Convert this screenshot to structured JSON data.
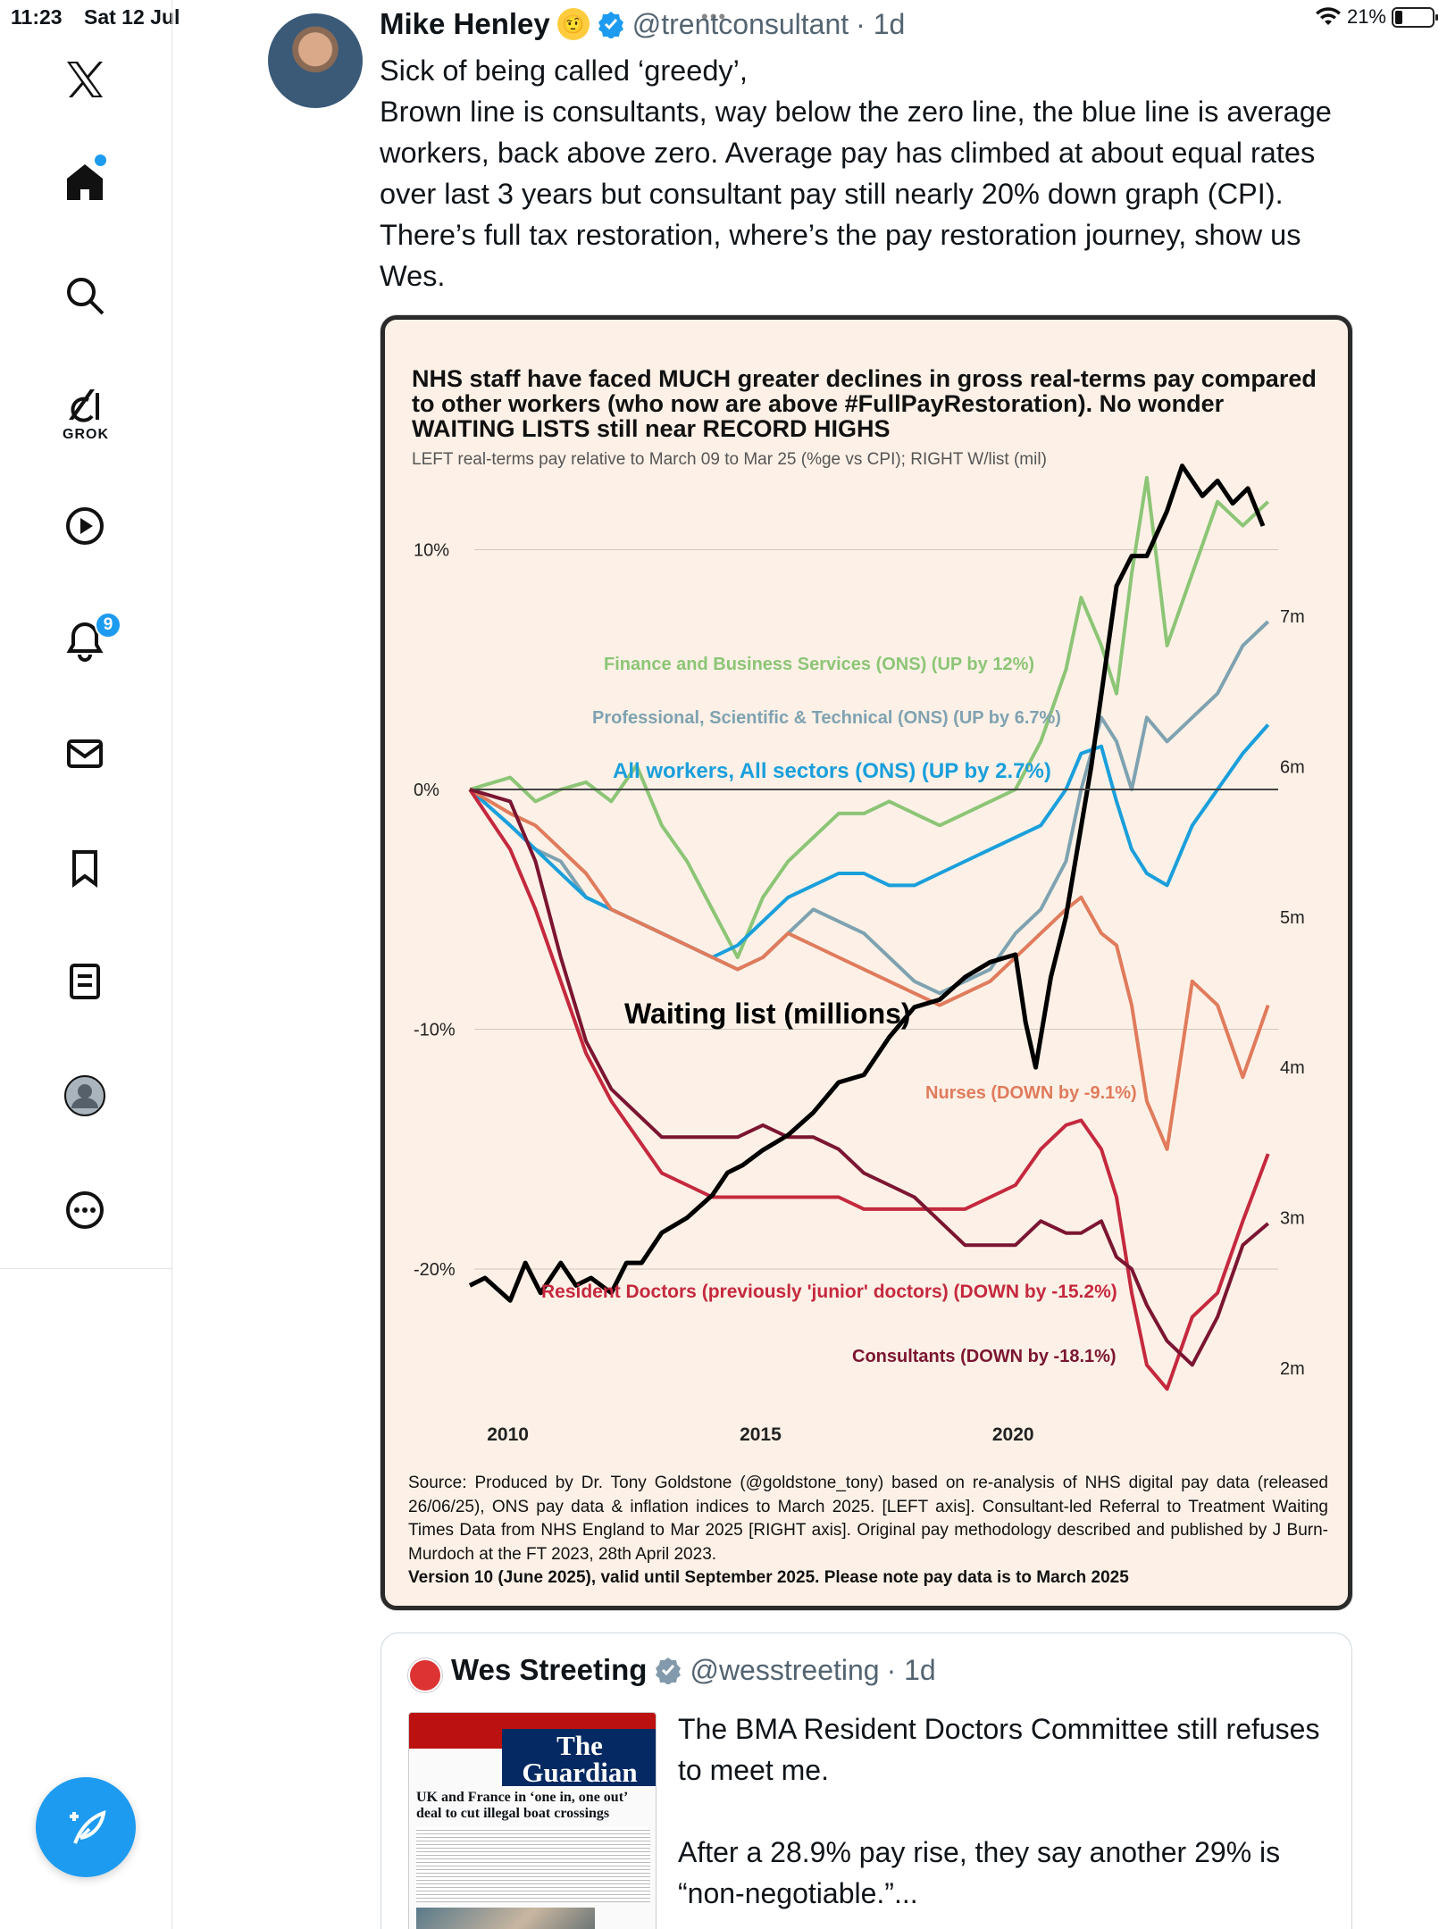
{
  "status": {
    "time": "11:23",
    "date": "Sat 12 Jul",
    "battery": "21%"
  },
  "sidebar": {
    "items": [
      {
        "name": "x-logo"
      },
      {
        "name": "home"
      },
      {
        "name": "search"
      },
      {
        "name": "grok",
        "label": "GROK"
      },
      {
        "name": "video"
      },
      {
        "name": "notifications",
        "badge": "9"
      },
      {
        "name": "messages"
      },
      {
        "name": "bookmarks"
      },
      {
        "name": "lists"
      },
      {
        "name": "profile"
      },
      {
        "name": "more"
      }
    ],
    "accent": "#1d9bf0"
  },
  "tweet": {
    "name": "Mike Henley",
    "handle": "@trentconsultant",
    "time": "· 1d",
    "text": "Sick of being called ‘greedy’,\nBrown line is consultants, way below the zero line, the blue line is average workers, back above zero. Average pay has climbed at about equal rates over last 3 years but consultant pay still nearly 20% down graph (CPI). There’s full tax restoration, where’s the pay restoration journey, show us Wes."
  },
  "chart": {
    "title": "NHS staff have faced MUCH greater declines in gross real-terms pay compared to other workers (who now are above #FullPayRestoration). No wonder WAITING LISTS still near RECORD HIGHS",
    "subtitle": "LEFT real-terms pay relative to March 09 to Mar 25 (%ge vs CPI); RIGHT W/list (mil)",
    "source": "Source: Produced by Dr. Tony Goldstone (@goldstone_tony) based on re-analysis of NHS digital pay data (released 26/06/25), ONS pay data & inflation indices to March 2025. [LEFT axis]. Consultant-led Referral to Treatment Waiting Times Data from NHS England to Mar 2025 [RIGHT axis]. Original pay methodology described and published by J Burn-Murdoch at the FT 2023, 28th April 2023.",
    "version": "Version 10 (June 2025), valid until September 2025. Please note pay data is to March 2025"
  },
  "chart_data": {
    "type": "line",
    "x_ticks": [
      "2010",
      "2015",
      "2020"
    ],
    "x_range": [
      2009.2,
      2025.2
    ],
    "left_ticks": [
      "10%",
      "0%",
      "-10%",
      "-20%"
    ],
    "left_ylim": [
      -26,
      12
    ],
    "right_ticks": [
      "7m",
      "6m",
      "5m",
      "4m",
      "3m",
      "2m"
    ],
    "right_ylim": [
      1.75,
      8.2
    ],
    "series": [
      {
        "name": "Finance and Business Services (ONS) (UP by 12%)",
        "color": "#8cc576",
        "axis": "left",
        "x": [
          2009.2,
          2010,
          2010.5,
          2011,
          2011.5,
          2012,
          2012.5,
          2013,
          2013.5,
          2014,
          2014.5,
          2015,
          2015.5,
          2016,
          2016.5,
          2017,
          2017.5,
          2018,
          2018.5,
          2019,
          2019.5,
          2020,
          2020.5,
          2021,
          2021.3,
          2021.7,
          2022,
          2022.3,
          2022.6,
          2023,
          2023.5,
          2024,
          2024.5,
          2025
        ],
        "y": [
          0,
          0.5,
          -0.5,
          0,
          0.3,
          -0.5,
          1,
          -1.5,
          -3,
          -5,
          -7,
          -4.5,
          -3,
          -2,
          -1,
          -1,
          -0.5,
          -1,
          -1.5,
          -1,
          -0.5,
          0,
          2,
          5,
          8,
          6,
          4,
          9,
          13,
          6,
          9,
          12,
          11,
          12
        ]
      },
      {
        "name": "Professional, Scientific & Technical (ONS) (UP by 6.7%)",
        "color": "#7fa2b1",
        "axis": "left",
        "x": [
          2009.2,
          2010,
          2010.5,
          2011,
          2011.5,
          2012,
          2012.5,
          2013,
          2013.5,
          2014,
          2014.5,
          2015,
          2015.5,
          2016,
          2016.5,
          2017,
          2017.5,
          2018,
          2018.5,
          2019,
          2019.5,
          2020,
          2020.5,
          2021,
          2021.3,
          2021.7,
          2022,
          2022.3,
          2022.6,
          2023,
          2023.5,
          2024,
          2024.5,
          2025
        ],
        "y": [
          0,
          -1.5,
          -2.5,
          -3,
          -4.5,
          -5,
          -5.5,
          -6,
          -6.5,
          -7,
          -7.5,
          -7,
          -6,
          -5,
          -5.5,
          -6,
          -7,
          -8,
          -8.5,
          -8,
          -7.5,
          -6,
          -5,
          -3,
          0,
          3,
          2,
          0,
          3,
          2,
          3,
          4,
          6,
          7
        ]
      },
      {
        "name": "All workers, All sectors (ONS) (UP by 2.7%)",
        "color": "#1a9fdb",
        "axis": "left",
        "x": [
          2009.2,
          2010,
          2010.5,
          2011,
          2011.5,
          2012,
          2012.5,
          2013,
          2013.5,
          2014,
          2014.5,
          2015,
          2015.5,
          2016,
          2016.5,
          2017,
          2017.5,
          2018,
          2018.5,
          2019,
          2019.5,
          2020,
          2020.5,
          2021,
          2021.3,
          2021.7,
          2022,
          2022.3,
          2022.6,
          2023,
          2023.5,
          2024,
          2024.5,
          2025
        ],
        "y": [
          0,
          -1.5,
          -2.5,
          -3.5,
          -4.5,
          -5,
          -5.5,
          -6,
          -6.5,
          -7,
          -6.5,
          -5.5,
          -4.5,
          -4,
          -3.5,
          -3.5,
          -4,
          -4,
          -3.5,
          -3,
          -2.5,
          -2,
          -1.5,
          0,
          1.5,
          1.8,
          -0.5,
          -2.5,
          -3.5,
          -4,
          -1.5,
          0,
          1.5,
          2.7
        ]
      },
      {
        "name": "Nurses (DOWN by -9.1%)",
        "color": "#e07b5c",
        "axis": "left",
        "x": [
          2009.2,
          2010,
          2010.5,
          2011,
          2011.5,
          2012,
          2012.5,
          2013,
          2013.5,
          2014,
          2014.5,
          2015,
          2015.5,
          2016,
          2016.5,
          2017,
          2017.5,
          2018,
          2018.5,
          2019,
          2019.5,
          2020,
          2020.5,
          2021,
          2021.3,
          2021.7,
          2022,
          2022.3,
          2022.6,
          2023,
          2023.5,
          2024,
          2024.5,
          2025
        ],
        "y": [
          0,
          -1,
          -1.5,
          -2.5,
          -3.5,
          -5,
          -5.5,
          -6,
          -6.5,
          -7,
          -7.5,
          -7,
          -6,
          -6.5,
          -7,
          -7.5,
          -8,
          -8.5,
          -9,
          -8.5,
          -8,
          -7,
          -6,
          -5,
          -4.5,
          -6,
          -6.5,
          -9,
          -13,
          -15,
          -8,
          -9,
          -12,
          -9
        ]
      },
      {
        "name": "Resident Doctors (previously 'junior' doctors) (DOWN by -15.2%)",
        "color": "#c5293e",
        "axis": "left",
        "x": [
          2009.2,
          2010,
          2010.5,
          2011,
          2011.5,
          2012,
          2012.5,
          2013,
          2013.5,
          2014,
          2014.5,
          2015,
          2015.5,
          2016,
          2016.5,
          2017,
          2017.5,
          2018,
          2018.5,
          2019,
          2019.5,
          2020,
          2020.5,
          2021,
          2021.3,
          2021.7,
          2022,
          2022.3,
          2022.6,
          2023,
          2023.5,
          2024,
          2024.5,
          2025
        ],
        "y": [
          0,
          -2.5,
          -5,
          -8,
          -11,
          -13,
          -14.5,
          -16,
          -16.5,
          -17,
          -17,
          -17,
          -17,
          -17,
          -17,
          -17.5,
          -17.5,
          -17.5,
          -17.5,
          -17.5,
          -17,
          -16.5,
          -15,
          -14,
          -13.8,
          -15,
          -17,
          -21,
          -24,
          -25,
          -22,
          -21,
          -18,
          -15.2
        ]
      },
      {
        "name": "Consultants (DOWN by -18.1%)",
        "color": "#7b1531",
        "axis": "left",
        "x": [
          2009.2,
          2010,
          2010.5,
          2011,
          2011.5,
          2012,
          2012.5,
          2013,
          2013.5,
          2014,
          2014.5,
          2015,
          2015.5,
          2016,
          2016.5,
          2017,
          2017.5,
          2018,
          2018.5,
          2019,
          2019.5,
          2020,
          2020.5,
          2021,
          2021.3,
          2021.7,
          2022,
          2022.3,
          2022.6,
          2023,
          2023.5,
          2024,
          2024.5,
          2025
        ],
        "y": [
          0,
          -0.5,
          -3,
          -7,
          -10.5,
          -12.5,
          -13.5,
          -14.5,
          -14.5,
          -14.5,
          -14.5,
          -14,
          -14.5,
          -14.5,
          -15,
          -16,
          -16.5,
          -17,
          -18,
          -19,
          -19,
          -19,
          -18,
          -18.5,
          -18.5,
          -18,
          -19.5,
          -20,
          -21.5,
          -23,
          -24,
          -22,
          -19,
          -18.1
        ]
      },
      {
        "name": "Waiting list (millions)",
        "color": "#000000",
        "axis": "right",
        "x": [
          2009.2,
          2009.5,
          2010,
          2010.3,
          2010.6,
          2011,
          2011.3,
          2011.6,
          2012,
          2012.3,
          2012.6,
          2013,
          2013.5,
          2014,
          2014.3,
          2014.6,
          2015,
          2015.5,
          2016,
          2016.5,
          2017,
          2017.5,
          2018,
          2018.5,
          2019,
          2019.5,
          2020,
          2020.2,
          2020.4,
          2020.7,
          2021,
          2021.5,
          2022,
          2022.3,
          2022.6,
          2023,
          2023.3,
          2023.7,
          2024,
          2024.3,
          2024.6,
          2024.9
        ],
        "y": [
          2.55,
          2.6,
          2.45,
          2.7,
          2.5,
          2.7,
          2.55,
          2.6,
          2.5,
          2.7,
          2.7,
          2.9,
          3.0,
          3.15,
          3.3,
          3.35,
          3.45,
          3.55,
          3.7,
          3.9,
          3.95,
          4.2,
          4.4,
          4.45,
          4.6,
          4.7,
          4.75,
          4.3,
          4.0,
          4.6,
          5.0,
          6.0,
          7.2,
          7.4,
          7.4,
          7.7,
          8.0,
          7.8,
          7.9,
          7.75,
          7.85,
          7.6
        ]
      }
    ],
    "annotations": [
      {
        "text": "Finance and Business Services (ONS) (UP by 12%)",
        "color": "#8cc576"
      },
      {
        "text": "Professional, Scientific & Technical (ONS) (UP by 6.7%)",
        "color": "#7fa2b1"
      },
      {
        "text": "All workers, All sectors (ONS) (UP by 2.7%)",
        "color": "#1a9fdb"
      },
      {
        "text": "Waiting list (millions)",
        "color": "#000000"
      },
      {
        "text": "Nurses (DOWN by -9.1%)",
        "color": "#e07b5c"
      },
      {
        "text": "Resident Doctors (previously 'junior' doctors) (DOWN by -15.2%)",
        "color": "#c5293e"
      },
      {
        "text": "Consultants (DOWN by -18.1%)",
        "color": "#7b1531"
      }
    ]
  },
  "quoted": {
    "name": "Wes Streeting",
    "handle": "@wesstreeting",
    "time": "· 1d",
    "text": "The BMA Resident Doctors Committee still refuses to meet me.\n\nAfter a 28.9% pay rise, they say another 29% is “non-negotiable.”...",
    "thumb_masthead": "The Guardian",
    "thumb_headline": "UK and France in ‘one in, one out’ deal to cut illegal boat crossings"
  }
}
